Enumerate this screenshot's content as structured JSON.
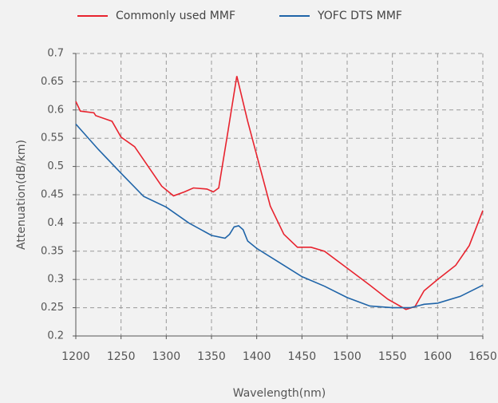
{
  "chart_data": {
    "type": "line",
    "xlabel": "Wavelength(nm)",
    "ylabel": "Attenuation(dB/km)",
    "xlim": [
      1200,
      1650
    ],
    "xticks": [
      1200,
      1250,
      1300,
      1350,
      1400,
      1450,
      1500,
      1550,
      1600,
      1650
    ],
    "ylim": [
      0.2,
      0.7
    ],
    "yticks": [
      0.2,
      0.25,
      0.3,
      0.35,
      0.4,
      0.45,
      0.5,
      0.55,
      0.6,
      0.65,
      0.7
    ],
    "grid": true,
    "series": [
      {
        "name": "Commonly used MMF",
        "color": "#e8232e",
        "x": [
          1200,
          1205,
          1220,
          1222,
          1240,
          1250,
          1265,
          1280,
          1295,
          1308,
          1320,
          1330,
          1345,
          1352,
          1358,
          1368,
          1378,
          1390,
          1400,
          1415,
          1430,
          1445,
          1460,
          1475,
          1500,
          1525,
          1545,
          1565,
          1575,
          1585,
          1600,
          1620,
          1635,
          1650
        ],
        "values": [
          0.615,
          0.598,
          0.595,
          0.59,
          0.58,
          0.552,
          0.535,
          0.5,
          0.465,
          0.448,
          0.455,
          0.462,
          0.46,
          0.455,
          0.462,
          0.56,
          0.66,
          0.58,
          0.52,
          0.43,
          0.38,
          0.357,
          0.357,
          0.35,
          0.32,
          0.29,
          0.265,
          0.247,
          0.252,
          0.28,
          0.3,
          0.325,
          0.36,
          0.422
        ]
      },
      {
        "name": "YOFC DTS MMF",
        "color": "#1f64a8",
        "x": [
          1200,
          1225,
          1250,
          1275,
          1300,
          1325,
          1350,
          1365,
          1370,
          1375,
          1380,
          1385,
          1390,
          1400,
          1425,
          1450,
          1475,
          1500,
          1525,
          1550,
          1570,
          1585,
          1600,
          1625,
          1650
        ],
        "values": [
          0.575,
          0.53,
          0.488,
          0.447,
          0.428,
          0.4,
          0.378,
          0.373,
          0.38,
          0.393,
          0.395,
          0.388,
          0.368,
          0.355,
          0.33,
          0.305,
          0.288,
          0.268,
          0.253,
          0.25,
          0.25,
          0.256,
          0.258,
          0.27,
          0.29
        ]
      }
    ]
  }
}
